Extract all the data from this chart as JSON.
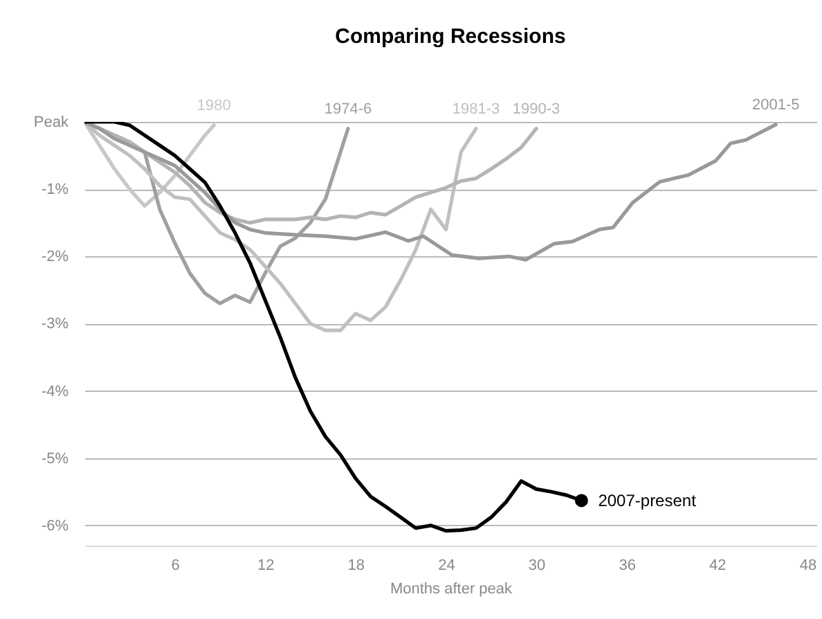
{
  "chart_data": {
    "type": "line",
    "title": "Comparing Recessions",
    "xlabel": "Months after peak",
    "xlim": [
      0,
      48.6
    ],
    "xticks": [
      6,
      12,
      18,
      24,
      30,
      36,
      42,
      48
    ],
    "ylim": [
      -6.3,
      0
    ],
    "yticks": [
      {
        "value": 0,
        "label": "Peak"
      },
      {
        "value": -1,
        "label": "-1%"
      },
      {
        "value": -2,
        "label": "-2%"
      },
      {
        "value": -3,
        "label": "-3%"
      },
      {
        "value": -4,
        "label": "-4%"
      },
      {
        "value": -5,
        "label": "-5%"
      },
      {
        "value": -6,
        "label": "-6%"
      }
    ],
    "grid": "y",
    "series": [
      {
        "name": "1980",
        "color": "#c8c8c8",
        "x": [
          0,
          1,
          2,
          3,
          4,
          5,
          6,
          7,
          8,
          8.6
        ],
        "values": [
          0,
          -0.35,
          -0.7,
          -1.0,
          -1.25,
          -1.05,
          -0.8,
          -0.5,
          -0.2,
          -0.05
        ]
      },
      {
        "name": "1974-6",
        "color": "#a0a0a0",
        "x": [
          0,
          1,
          2,
          3,
          4,
          5,
          6,
          7,
          8,
          9,
          10,
          11,
          12,
          13,
          14,
          15,
          16,
          17,
          17.5
        ],
        "values": [
          0,
          -0.1,
          -0.2,
          -0.3,
          -0.45,
          -1.3,
          -1.8,
          -2.25,
          -2.55,
          -2.7,
          -2.58,
          -2.68,
          -2.25,
          -1.85,
          -1.73,
          -1.5,
          -1.15,
          -0.45,
          -0.1
        ]
      },
      {
        "name": "1981-3",
        "color": "#c0c0c0",
        "x": [
          0,
          1,
          2,
          3,
          4,
          5,
          6,
          7,
          8,
          9,
          10,
          11,
          12,
          13,
          14,
          15,
          16,
          17,
          18,
          19,
          20,
          21,
          22,
          23,
          24,
          25,
          26
        ],
        "values": [
          0,
          -0.2,
          -0.35,
          -0.5,
          -0.7,
          -0.95,
          -1.12,
          -1.15,
          -1.4,
          -1.65,
          -1.75,
          -1.9,
          -2.15,
          -2.4,
          -2.7,
          -3.0,
          -3.1,
          -3.1,
          -2.85,
          -2.95,
          -2.75,
          -2.35,
          -1.9,
          -1.3,
          -1.6,
          -0.45,
          -0.1
        ]
      },
      {
        "name": "1990-3",
        "color": "#b4b4b4",
        "x": [
          0,
          1,
          2,
          3,
          4,
          5,
          6,
          7,
          8,
          9,
          10,
          11,
          12,
          13,
          14,
          15,
          16,
          17,
          18,
          19,
          20,
          21,
          22,
          23,
          24,
          25,
          26,
          27,
          28,
          29,
          30
        ],
        "values": [
          0,
          -0.1,
          -0.2,
          -0.3,
          -0.45,
          -0.6,
          -0.75,
          -0.95,
          -1.2,
          -1.35,
          -1.45,
          -1.5,
          -1.45,
          -1.45,
          -1.45,
          -1.42,
          -1.45,
          -1.4,
          -1.42,
          -1.35,
          -1.38,
          -1.25,
          -1.12,
          -1.05,
          -0.98,
          -0.88,
          -0.84,
          -0.7,
          -0.55,
          -0.38,
          -0.1
        ]
      },
      {
        "name": "2001-5",
        "color": "#999999",
        "x": [
          0,
          1,
          2,
          3,
          4,
          5,
          6,
          7,
          8,
          9,
          10,
          11,
          12,
          14,
          16,
          18,
          20,
          21.5,
          22.5,
          24.4,
          26.2,
          28.2,
          29.3,
          31.2,
          32.4,
          34.2,
          35.1,
          36.4,
          38.2,
          40.1,
          41.9,
          42.9,
          43.9,
          45.9
        ],
        "values": [
          0,
          -0.1,
          -0.25,
          -0.35,
          -0.45,
          -0.55,
          -0.65,
          -0.85,
          -1.05,
          -1.3,
          -1.5,
          -1.6,
          -1.65,
          -1.68,
          -1.7,
          -1.74,
          -1.64,
          -1.77,
          -1.7,
          -1.98,
          -2.03,
          -2.0,
          -2.05,
          -1.81,
          -1.78,
          -1.6,
          -1.57,
          -1.2,
          -0.89,
          -0.79,
          -0.58,
          -0.32,
          -0.27,
          -0.04
        ]
      },
      {
        "name": "2007-present",
        "color": "#000000",
        "x": [
          0,
          1,
          2,
          3,
          4,
          5,
          6,
          7,
          8,
          9,
          10,
          11,
          12,
          13,
          14,
          15,
          16,
          17,
          18,
          19,
          20,
          21,
          22,
          23,
          24,
          25,
          26,
          27,
          28,
          29,
          30,
          31,
          32,
          33
        ],
        "values": [
          0,
          0,
          0,
          -0.05,
          -0.2,
          -0.35,
          -0.5,
          -0.7,
          -0.9,
          -1.25,
          -1.65,
          -2.1,
          -2.65,
          -3.2,
          -3.8,
          -4.3,
          -4.68,
          -4.95,
          -5.3,
          -5.57,
          -5.72,
          -5.88,
          -6.04,
          -6.0,
          -6.08,
          -6.07,
          -6.04,
          -5.88,
          -5.65,
          -5.34,
          -5.46,
          -5.5,
          -5.55,
          -5.63
        ]
      }
    ]
  }
}
